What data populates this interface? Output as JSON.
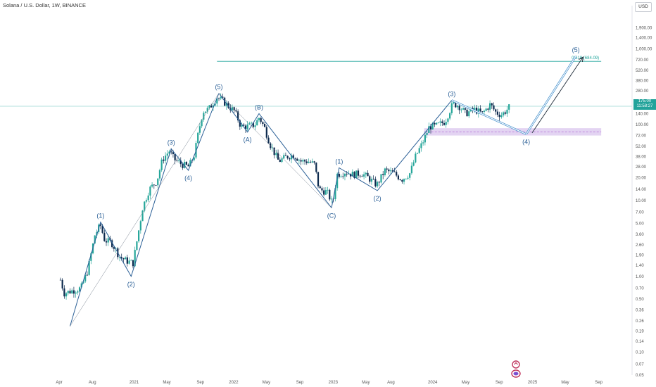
{
  "header": {
    "title": "Solana / U.S. Dollar, 1W, BINANCE",
    "currency_button": "USD"
  },
  "price_label": {
    "value": "175.00",
    "timer": "11:58:27"
  },
  "colors": {
    "up": "#26a69a",
    "down": "#0d2a4e",
    "wave": "#2a5f96",
    "fib": "#1ea39a",
    "zone": "#d9c6ee",
    "zone_line": "#b56fd6",
    "projection": "#3d8ccb",
    "arrow": "#1e2a38"
  },
  "icons": {
    "brand": "brand-logo-icon"
  },
  "chart_data": {
    "type": "candlestick",
    "title": "Solana / U.S. Dollar, 1W, BINANCE",
    "y_scale": "log",
    "ylim": [
      0.05,
      3000
    ],
    "xlim": [
      "2020-04-01",
      "2025-09-20"
    ],
    "y_ticks": [
      "1,900.00",
      "1,400.00",
      "1,000.00",
      "720.00",
      "520.00",
      "380.00",
      "280.00",
      "200.00",
      "140.00",
      "100.00",
      "72.00",
      "52.00",
      "38.00",
      "28.00",
      "20.00",
      "14.00",
      "10.00",
      "7.00",
      "5.00",
      "3.60",
      "2.60",
      "1.90",
      "1.40",
      "1.00",
      "0.70",
      "0.50",
      "0.36",
      "0.26",
      "0.19",
      "0.14",
      "0.10",
      "0.07",
      "0.05"
    ],
    "x_ticks": [
      {
        "label": "Apr",
        "date": "2020-04-01"
      },
      {
        "label": "Aug",
        "date": "2020-08-01"
      },
      {
        "label": "2021",
        "date": "2021-01-01"
      },
      {
        "label": "May",
        "date": "2021-05-01"
      },
      {
        "label": "Sep",
        "date": "2021-09-01"
      },
      {
        "label": "2022",
        "date": "2022-01-01"
      },
      {
        "label": "May",
        "date": "2022-05-01"
      },
      {
        "label": "Sep",
        "date": "2022-09-01"
      },
      {
        "label": "2023",
        "date": "2023-01-01"
      },
      {
        "label": "May",
        "date": "2023-05-01"
      },
      {
        "label": "Aug",
        "date": "2023-08-01"
      },
      {
        "label": "2024",
        "date": "2024-01-01"
      },
      {
        "label": "May",
        "date": "2024-05-01"
      },
      {
        "label": "Sep",
        "date": "2024-09-01"
      },
      {
        "label": "2025",
        "date": "2025-01-01"
      },
      {
        "label": "May",
        "date": "2025-05-01"
      },
      {
        "label": "Sep",
        "date": "2025-09-01"
      }
    ],
    "price_path": [
      [
        "2020-04-06",
        0.9
      ],
      [
        "2020-04-20",
        0.6
      ],
      [
        "2020-05-20",
        0.65
      ],
      [
        "2020-06-20",
        0.7
      ],
      [
        "2020-07-15",
        1.2
      ],
      [
        "2020-08-10",
        3.5
      ],
      [
        "2020-08-30",
        4.8
      ],
      [
        "2020-09-15",
        3.0
      ],
      [
        "2020-10-10",
        2.8
      ],
      [
        "2020-11-10",
        1.8
      ],
      [
        "2020-12-05",
        1.6
      ],
      [
        "2020-12-28",
        1.5
      ],
      [
        "2021-01-15",
        3.5
      ],
      [
        "2021-02-01",
        8
      ],
      [
        "2021-02-25",
        14
      ],
      [
        "2021-03-25",
        18
      ],
      [
        "2021-04-15",
        35
      ],
      [
        "2021-05-10",
        45
      ],
      [
        "2021-05-28",
        35
      ],
      [
        "2021-06-25",
        30
      ],
      [
        "2021-07-20",
        28
      ],
      [
        "2021-08-10",
        40
      ],
      [
        "2021-08-25",
        80
      ],
      [
        "2021-09-10",
        150
      ],
      [
        "2021-10-01",
        160
      ],
      [
        "2021-11-01",
        230
      ],
      [
        "2021-11-20",
        210
      ],
      [
        "2021-12-10",
        180
      ],
      [
        "2022-01-05",
        150
      ],
      [
        "2022-01-28",
        95
      ],
      [
        "2022-02-20",
        95
      ],
      [
        "2022-03-20",
        100
      ],
      [
        "2022-04-05",
        125
      ],
      [
        "2022-04-25",
        90
      ],
      [
        "2022-05-15",
        55
      ],
      [
        "2022-06-15",
        33
      ],
      [
        "2022-07-15",
        38
      ],
      [
        "2022-08-10",
        40
      ],
      [
        "2022-09-05",
        33
      ],
      [
        "2022-10-01",
        33
      ],
      [
        "2022-10-25",
        30
      ],
      [
        "2022-11-10",
        14
      ],
      [
        "2022-12-10",
        13
      ],
      [
        "2022-12-30",
        9
      ],
      [
        "2023-01-15",
        22
      ],
      [
        "2023-02-15",
        24
      ],
      [
        "2023-03-15",
        22
      ],
      [
        "2023-04-15",
        23
      ],
      [
        "2023-05-10",
        20
      ],
      [
        "2023-06-10",
        16
      ],
      [
        "2023-07-10",
        25
      ],
      [
        "2023-08-10",
        23
      ],
      [
        "2023-09-10",
        19
      ],
      [
        "2023-10-10",
        23
      ],
      [
        "2023-10-30",
        38
      ],
      [
        "2023-11-25",
        58
      ],
      [
        "2023-12-20",
        95
      ],
      [
        "2024-01-10",
        95
      ],
      [
        "2024-02-15",
        110
      ],
      [
        "2024-03-15",
        190
      ],
      [
        "2024-04-05",
        180
      ],
      [
        "2024-05-01",
        140
      ],
      [
        "2024-06-01",
        160
      ],
      [
        "2024-07-01",
        140
      ],
      [
        "2024-07-30",
        185
      ],
      [
        "2024-08-20",
        145
      ],
      [
        "2024-09-10",
        135
      ],
      [
        "2024-10-01",
        160
      ],
      [
        "2024-10-10",
        175
      ]
    ],
    "wave_path": [
      [
        "2020-05-11",
        0.22
      ],
      [
        "2020-08-31",
        5.2
      ],
      [
        "2020-12-21",
        1.0
      ],
      [
        "2021-05-17",
        48
      ],
      [
        "2021-07-19",
        25
      ],
      [
        "2021-11-08",
        260
      ],
      [
        "2022-02-21",
        80
      ],
      [
        "2022-04-04",
        140
      ],
      [
        "2022-12-26",
        8.0
      ],
      [
        "2023-01-23",
        27
      ],
      [
        "2023-06-12",
        13.5
      ],
      [
        "2024-03-11",
        210
      ],
      [
        "2024-12-09",
        75
      ],
      [
        "2025-06-09",
        800
      ]
    ],
    "abc_path": [
      [
        "2021-11-08",
        260
      ],
      [
        "2022-02-21",
        80
      ],
      [
        "2022-04-04",
        140
      ],
      [
        "2022-12-26",
        8.0
      ]
    ],
    "wave_labels": [
      {
        "label": "(1)",
        "date": "2020-08-31",
        "y": 5.2,
        "position": "above"
      },
      {
        "label": "(2)",
        "date": "2020-12-21",
        "y": 1.0,
        "position": "below"
      },
      {
        "label": "(3)",
        "date": "2021-05-17",
        "y": 48,
        "position": "above"
      },
      {
        "label": "(4)",
        "date": "2021-07-19",
        "y": 25,
        "position": "below"
      },
      {
        "label": "(5)",
        "date": "2021-11-08",
        "y": 260,
        "position": "above"
      },
      {
        "label": "(A)",
        "date": "2022-02-21",
        "y": 80,
        "position": "below"
      },
      {
        "label": "(B)",
        "date": "2022-04-04",
        "y": 140,
        "position": "above"
      },
      {
        "label": "(C)",
        "date": "2022-12-26",
        "y": 8.0,
        "position": "below"
      },
      {
        "label": "(1)",
        "date": "2023-01-23",
        "y": 27,
        "position": "above"
      },
      {
        "label": "(2)",
        "date": "2023-06-12",
        "y": 13.5,
        "position": "below"
      },
      {
        "label": "(3)",
        "date": "2024-03-11",
        "y": 210,
        "position": "above"
      },
      {
        "label": "(4)",
        "date": "2024-12-09",
        "y": 75,
        "position": "below"
      },
      {
        "label": "(5)",
        "date": "2025-06-09",
        "y": 800,
        "position": "above"
      }
    ],
    "channel_lines": [
      [
        [
          "2020-05-11",
          0.22
        ],
        [
          "2021-11-08",
          260
        ]
      ],
      [
        [
          "2021-11-08",
          260
        ],
        [
          "2022-12-26",
          8.0
        ]
      ]
    ],
    "projection_arrow": {
      "from": [
        "2024-12-15",
        78
      ],
      "to": [
        "2025-06-15",
        780
      ]
    },
    "fib_line": {
      "label": "0.618 (684.09)",
      "value": 684.09,
      "from": "2021-11-01",
      "to": "2025-09-10"
    },
    "support_zone": {
      "low": 72,
      "high": 90,
      "from": "2023-12-01",
      "to": "2025-09-10"
    },
    "current_price": 175.0
  }
}
